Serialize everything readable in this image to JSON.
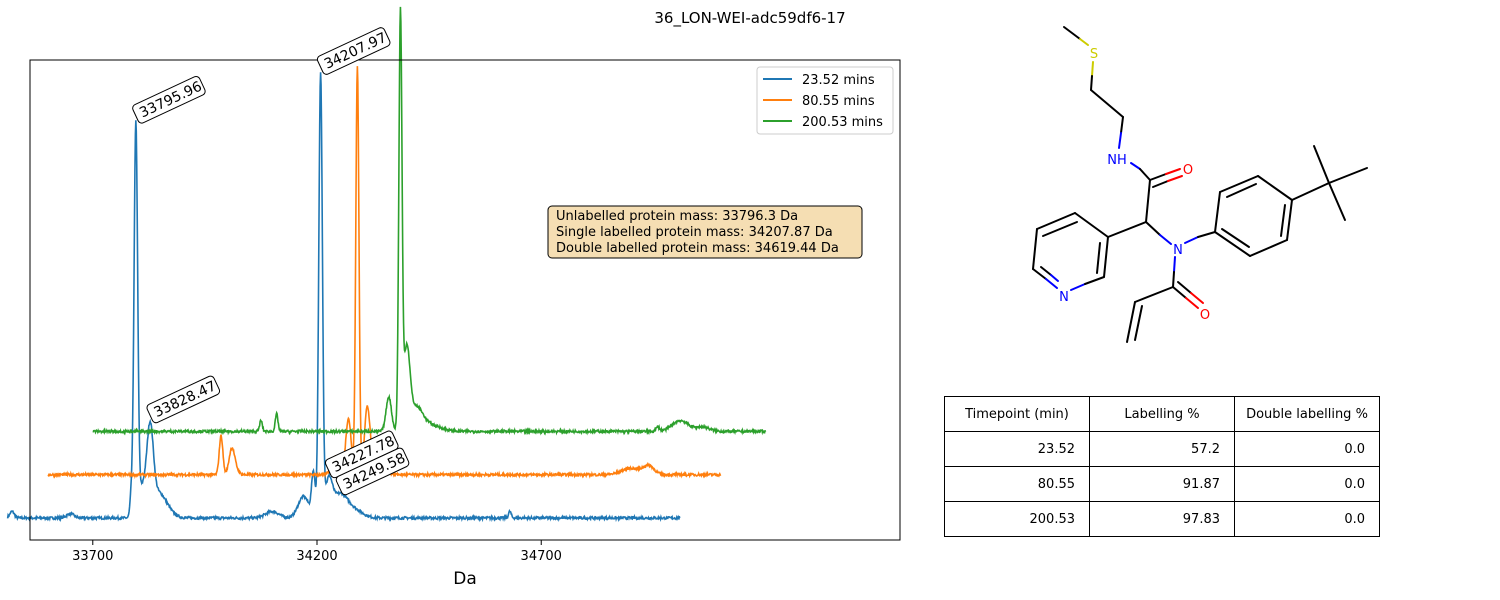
{
  "figure_title": "36_LON-WEI-adc59df6-17",
  "chart_data": {
    "type": "line",
    "xlabel": "Da",
    "ylabel": "",
    "xlim": [
      33560,
      35500
    ],
    "x_ticks": [
      33700,
      34200,
      34700
    ],
    "x_tick_labels": [
      "33700",
      "34200",
      "34700"
    ],
    "y_ticks_shown": false,
    "legend_position": "top-right",
    "series": [
      {
        "name": "23.52 mins",
        "color": "#1f77b4",
        "baseline": 0.0,
        "x_range": [
          33510,
          35010
        ],
        "peaks": [
          {
            "center": 33796,
            "height": 0.89,
            "width": 4
          },
          {
            "center": 33786,
            "height": 0.05,
            "width": 3
          },
          {
            "center": 33810,
            "height": 0.06,
            "width": 10
          },
          {
            "center": 33828,
            "height": 0.17,
            "width": 7
          },
          {
            "center": 33845,
            "height": 0.06,
            "width": 20
          },
          {
            "center": 33520,
            "height": 0.015,
            "width": 5
          },
          {
            "center": 33650,
            "height": 0.01,
            "width": 8
          },
          {
            "center": 34100,
            "height": 0.015,
            "width": 15
          },
          {
            "center": 34170,
            "height": 0.05,
            "width": 12
          },
          {
            "center": 34192,
            "height": 0.1,
            "width": 4
          },
          {
            "center": 34208,
            "height": 1.02,
            "width": 4
          },
          {
            "center": 34226,
            "height": 0.08,
            "width": 8
          },
          {
            "center": 34250,
            "height": 0.05,
            "width": 16
          },
          {
            "center": 34280,
            "height": 0.02,
            "width": 20
          },
          {
            "center": 34630,
            "height": 0.015,
            "width": 3
          }
        ]
      },
      {
        "name": "80.55 mins",
        "color": "#ff7f0e",
        "baseline": 0.1,
        "x_range": [
          33600,
          35100
        ],
        "peaks": [
          {
            "center": 33986,
            "height": 0.09,
            "width": 4
          },
          {
            "center": 34010,
            "height": 0.06,
            "width": 6
          },
          {
            "center": 34020,
            "height": 0.01,
            "width": 6
          },
          {
            "center": 34240,
            "height": 0.04,
            "width": 8
          },
          {
            "center": 34270,
            "height": 0.13,
            "width": 6
          },
          {
            "center": 34290,
            "height": 0.94,
            "width": 3.5
          },
          {
            "center": 34312,
            "height": 0.14,
            "width": 6
          },
          {
            "center": 34330,
            "height": 0.03,
            "width": 18
          },
          {
            "center": 34900,
            "height": 0.015,
            "width": 20
          },
          {
            "center": 34940,
            "height": 0.02,
            "width": 12
          }
        ]
      },
      {
        "name": "200.53 mins",
        "color": "#2ca02c",
        "baseline": 0.2,
        "x_range": [
          33700,
          35200
        ],
        "peaks": [
          {
            "center": 34075,
            "height": 0.025,
            "width": 3
          },
          {
            "center": 34110,
            "height": 0.04,
            "width": 3
          },
          {
            "center": 34360,
            "height": 0.08,
            "width": 6
          },
          {
            "center": 34386,
            "height": 0.95,
            "width": 3.5
          },
          {
            "center": 34400,
            "height": 0.18,
            "width": 7
          },
          {
            "center": 34420,
            "height": 0.05,
            "width": 15
          },
          {
            "center": 34450,
            "height": 0.015,
            "width": 25
          },
          {
            "center": 34960,
            "height": 0.01,
            "width": 4
          },
          {
            "center": 35010,
            "height": 0.025,
            "width": 18
          },
          {
            "center": 35060,
            "height": 0.01,
            "width": 15
          }
        ]
      }
    ],
    "annotations": [
      {
        "text": "33795.96",
        "x": 33796,
        "series": 0
      },
      {
        "text": "33828.47",
        "x": 33828,
        "series": 0
      },
      {
        "text": "34207.97",
        "x": 34208,
        "series": 0
      },
      {
        "text": "34227.78",
        "x": 34226,
        "series": 0
      },
      {
        "text": "34249.58",
        "x": 34250,
        "series": 0
      }
    ],
    "info_box": {
      "lines": [
        "Unlabelled protein mass: 33796.3 Da",
        "Single labelled protein mass: 34207.87 Da",
        "Double labelled protein mass: 34619.44 Da"
      ],
      "background": "#f5deb3"
    }
  },
  "molecule": {
    "atoms": {
      "S": "S",
      "NH": "NH",
      "O": "O",
      "N": "N"
    },
    "colors": {
      "sulfur": "#cccc00",
      "nitrogen": "#0000ff",
      "oxygen": "#ff0000",
      "carbon": "#000000"
    }
  },
  "table": {
    "headers": [
      "Timepoint (min)",
      "Labelling %",
      "Double labelling %"
    ],
    "rows": [
      [
        "23.52",
        "57.2",
        "0.0"
      ],
      [
        "80.55",
        "91.87",
        "0.0"
      ],
      [
        "200.53",
        "97.83",
        "0.0"
      ]
    ]
  }
}
